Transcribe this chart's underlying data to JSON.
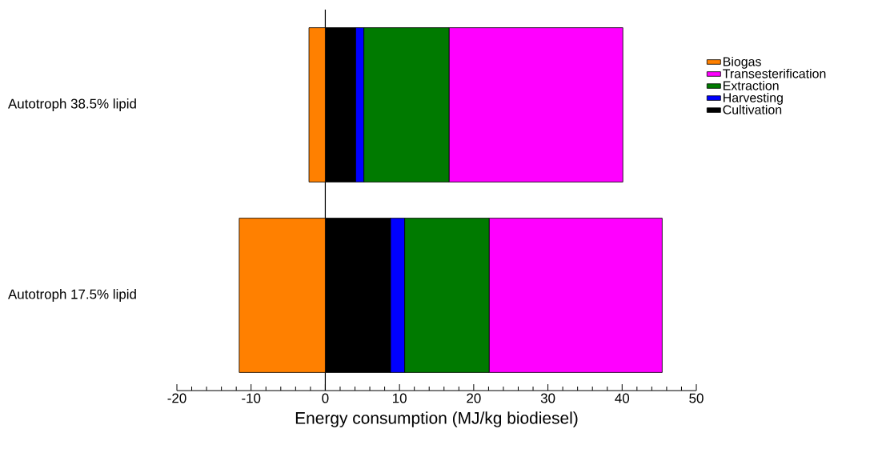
{
  "chart_data": {
    "type": "bar",
    "orientation": "horizontal",
    "stacked": true,
    "xlabel": "Energy consumption (MJ/kg biodiesel)",
    "categories": [
      "Autotroph 38.5% lipid",
      "Autotroph 17.5% lipid"
    ],
    "series": [
      {
        "name": "Cultivation",
        "color": "#000000",
        "values": [
          4.1,
          8.8
        ]
      },
      {
        "name": "Harvesting",
        "color": "#0000ff",
        "values": [
          1.1,
          1.9
        ]
      },
      {
        "name": "Extraction",
        "color": "#007a00",
        "values": [
          11.5,
          11.4
        ]
      },
      {
        "name": "Transesterification",
        "color": "#ff00ff",
        "values": [
          23.4,
          23.3
        ]
      },
      {
        "name": "Biogas",
        "color": "#ff8000",
        "values": [
          -2.2,
          -11.6
        ]
      }
    ],
    "xlim": [
      -20,
      50
    ],
    "xticks": [
      -20,
      -10,
      0,
      10,
      20,
      30,
      40,
      50
    ],
    "legend": "right"
  }
}
